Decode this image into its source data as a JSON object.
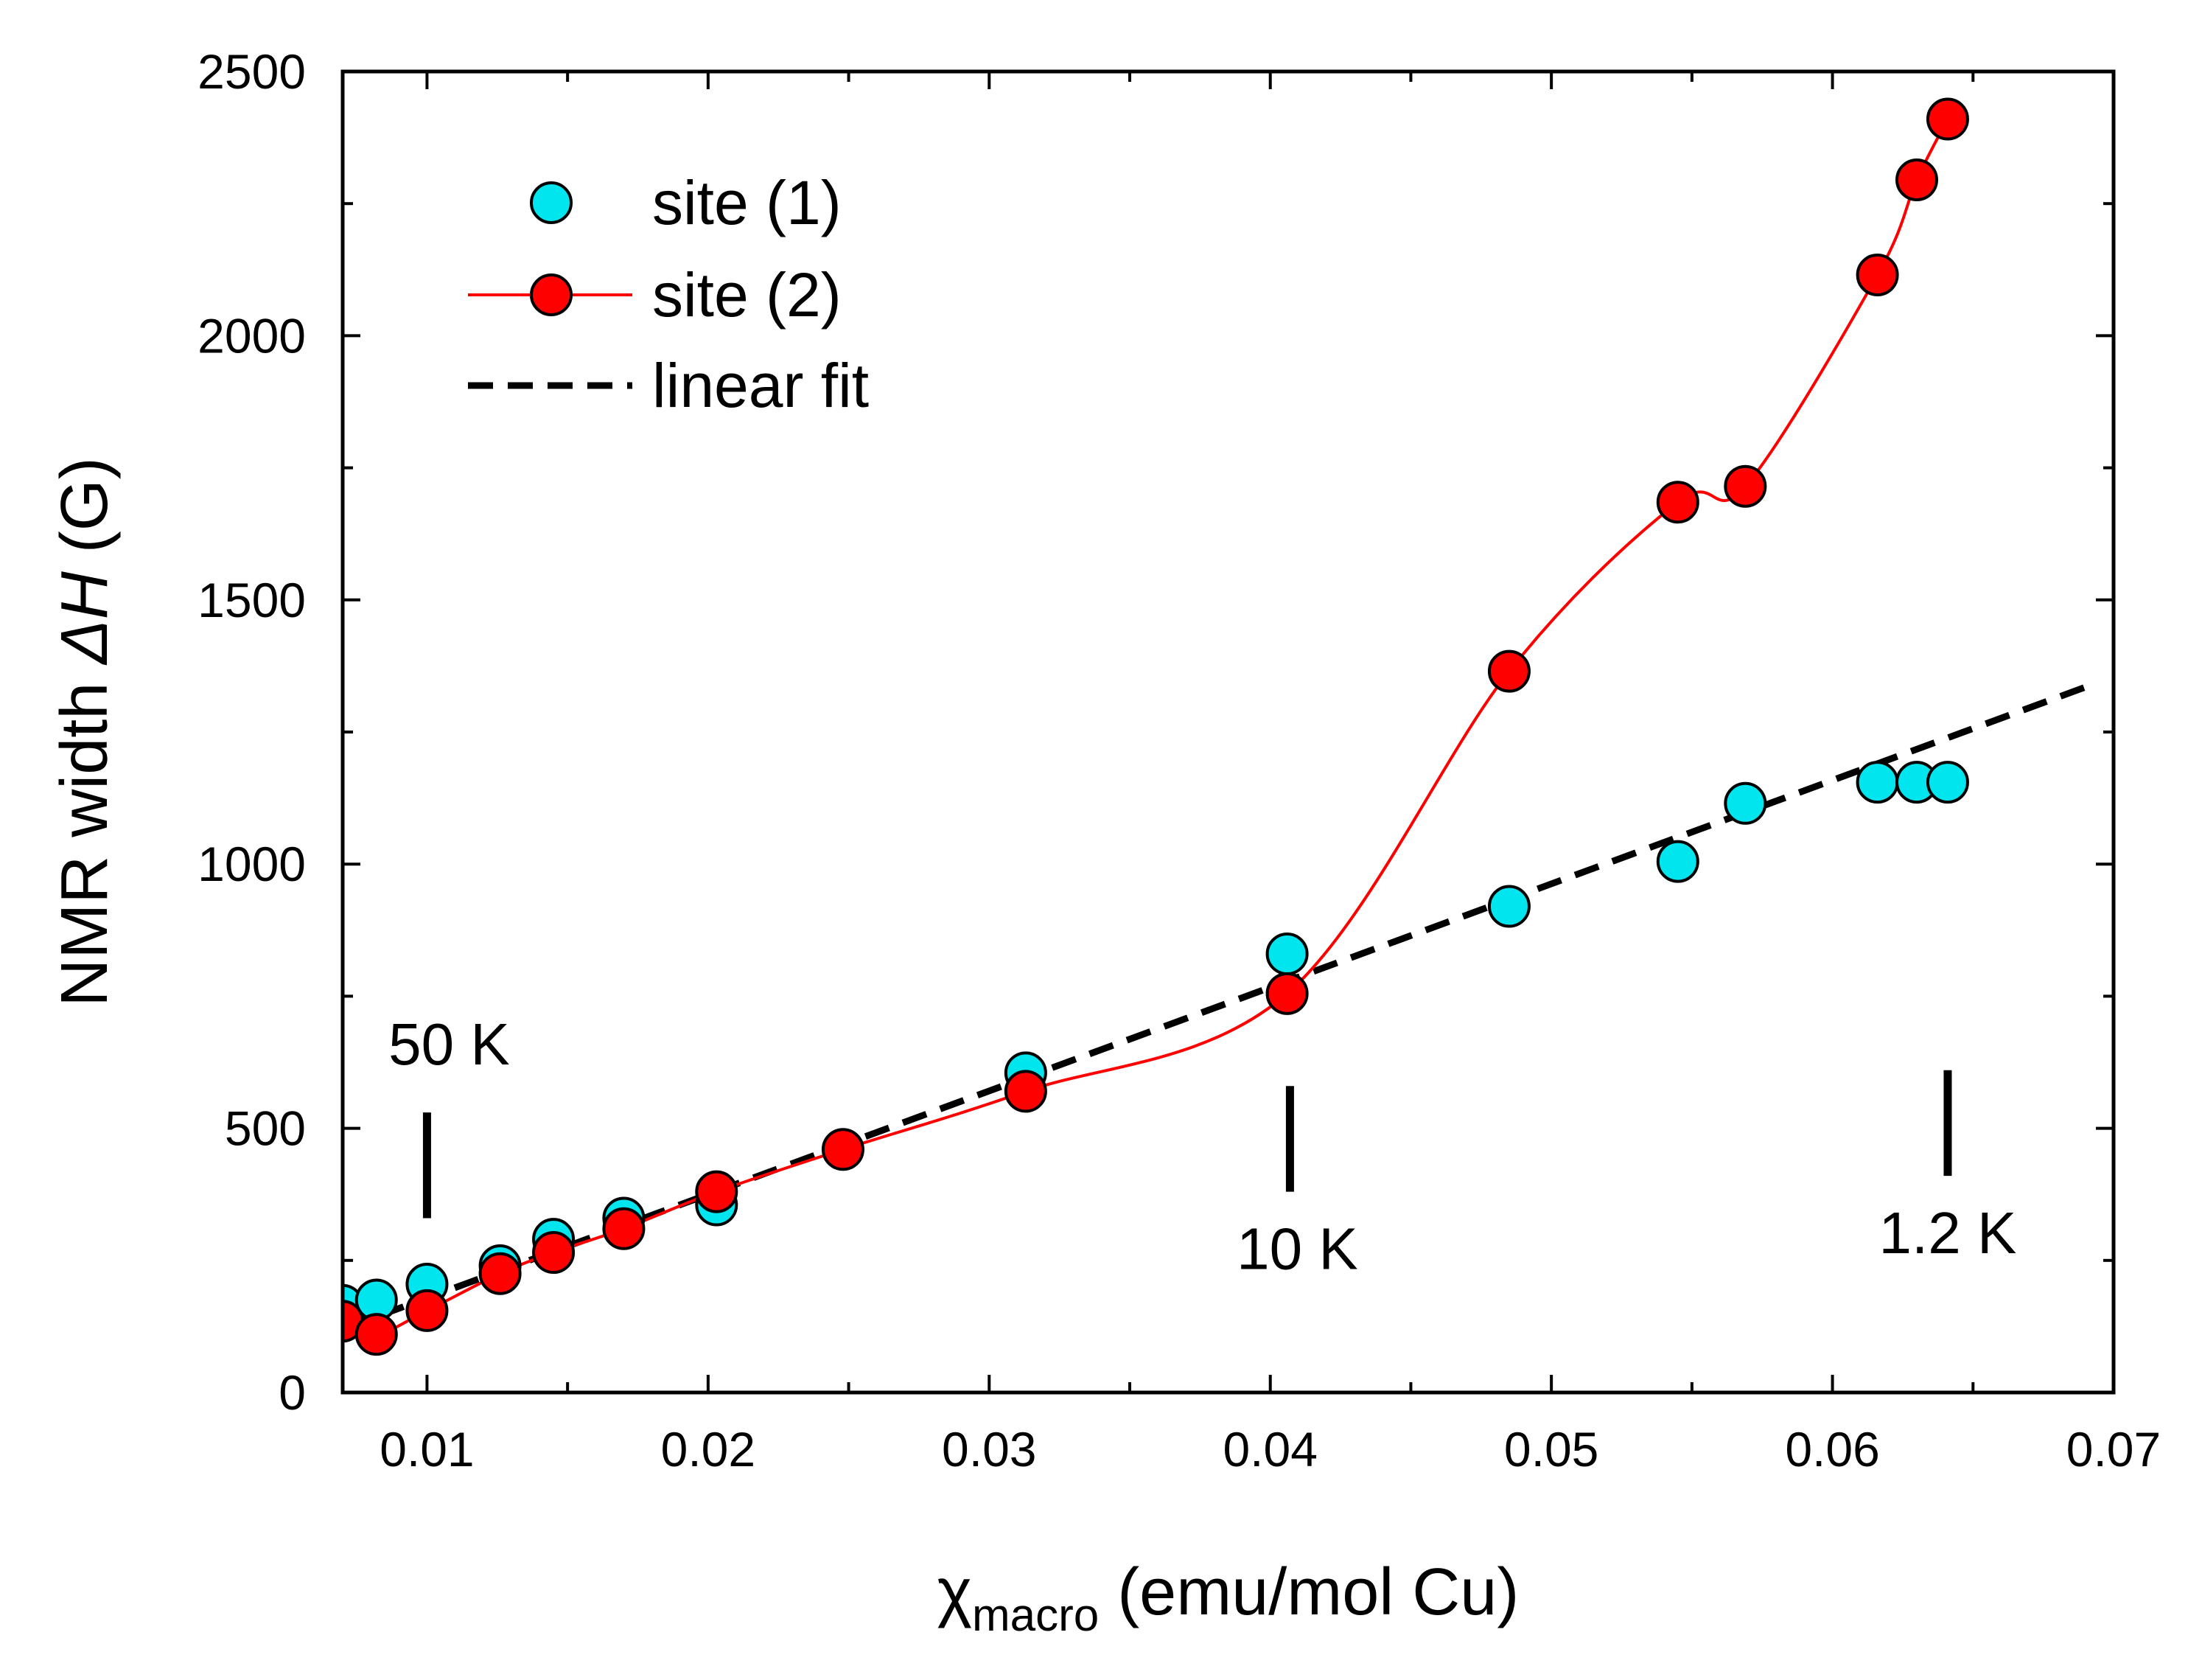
{
  "chart_data": {
    "type": "scatter",
    "title": "",
    "xlabel": {
      "base": "χ",
      "subscript": "macro",
      "rest": " (emu/mol Cu)"
    },
    "ylabel": {
      "prefix": "NMR width ",
      "italic": "ΔH",
      "suffix": " (G)"
    },
    "xlim": [
      0.007,
      0.07
    ],
    "ylim": [
      0,
      2500
    ],
    "xticks": [
      0.01,
      0.02,
      0.03,
      0.04,
      0.05,
      0.06,
      0.07
    ],
    "xtick_labels": [
      "0.01",
      "0.02",
      "0.03",
      "0.04",
      "0.05",
      "0.06",
      "0.07"
    ],
    "xticks_minor": [
      0.015,
      0.025,
      0.035,
      0.045,
      0.055,
      0.065
    ],
    "yticks": [
      0,
      500,
      1000,
      1500,
      2000,
      2500
    ],
    "ytick_labels": [
      "0",
      "500",
      "1000",
      "1500",
      "2000",
      "2500"
    ],
    "yticks_minor": [
      250,
      750,
      1250,
      1750,
      2250
    ],
    "colors": {
      "site1": "#00e5ee",
      "site2": "#ff0000",
      "site2_line": "#ff0000",
      "fit": "#000000"
    },
    "legend": {
      "position": "top-left",
      "entries": [
        "site (1)",
        "site (2)",
        "linear fit"
      ]
    },
    "series": [
      {
        "name": "site (1)",
        "marker": "circle",
        "line": false,
        "x": [
          0.007,
          0.0082,
          0.01,
          0.0126,
          0.0145,
          0.017,
          0.0203,
          0.0313,
          0.0406,
          0.0485,
          0.0545,
          0.0569,
          0.0616,
          0.063,
          0.0641
        ],
        "y": [
          165,
          175,
          205,
          240,
          290,
          330,
          355,
          605,
          830,
          920,
          1005,
          1115,
          1155,
          1155,
          1155
        ]
      },
      {
        "name": "site (2)",
        "marker": "circle",
        "line": true,
        "x": [
          0.007,
          0.0082,
          0.01,
          0.0126,
          0.0145,
          0.017,
          0.0203,
          0.0248,
          0.0313,
          0.0406,
          0.0485,
          0.0545,
          0.0569,
          0.0616,
          0.063,
          0.0641
        ],
        "y": [
          135,
          110,
          155,
          225,
          265,
          310,
          380,
          460,
          570,
          755,
          1365,
          1685,
          1715,
          2115,
          2295,
          2410
        ]
      },
      {
        "name": "linear fit",
        "style": "dashed",
        "x": [
          0.007,
          0.069
        ],
        "y": [
          120,
          1335
        ]
      }
    ],
    "annotations": [
      {
        "text": "50 K",
        "x": 0.01,
        "bar_y": [
          330,
          530
        ]
      },
      {
        "text": "10 K",
        "x": 0.0407,
        "bar_y": [
          380,
          580
        ]
      },
      {
        "text": "1.2 K",
        "x": 0.0641,
        "bar_y": [
          410,
          610
        ]
      }
    ]
  }
}
